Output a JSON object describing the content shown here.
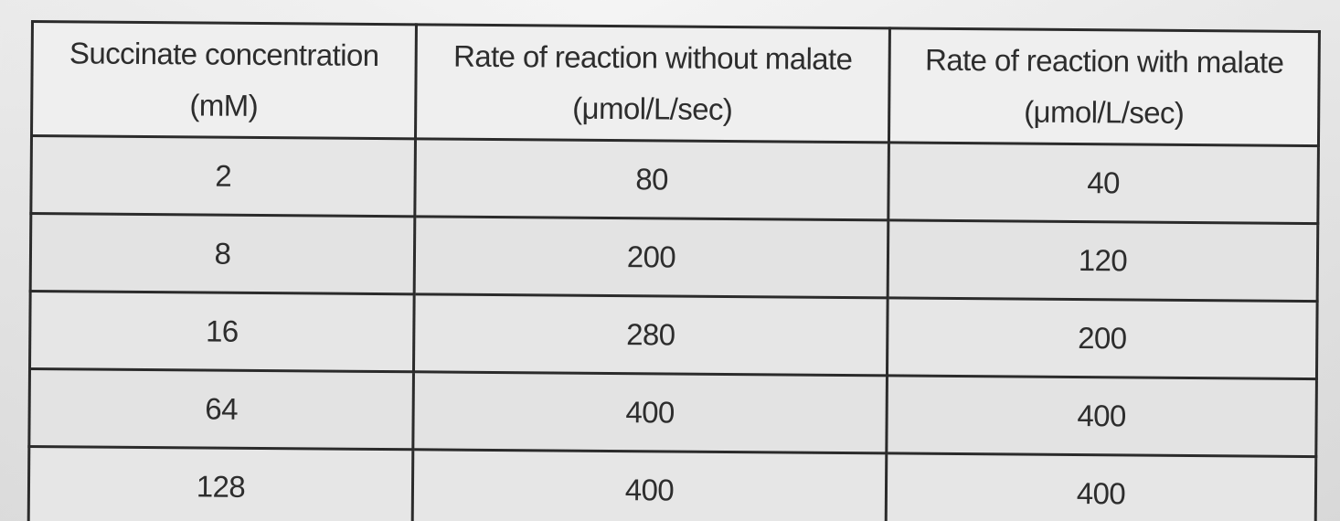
{
  "chart_data": {
    "type": "table",
    "columns": [
      {
        "line1": "Succinate concentration",
        "line2": "(mM)"
      },
      {
        "line1": "Rate of reaction without malate",
        "line2": "(μmol/L/sec)"
      },
      {
        "line1": "Rate of reaction with malate",
        "line2": "(μmol/L/sec)"
      }
    ],
    "rows": [
      [
        "2",
        "80",
        "40"
      ],
      [
        "8",
        "200",
        "120"
      ],
      [
        "16",
        "280",
        "200"
      ],
      [
        "64",
        "400",
        "400"
      ],
      [
        "128",
        "400",
        "400"
      ]
    ]
  }
}
